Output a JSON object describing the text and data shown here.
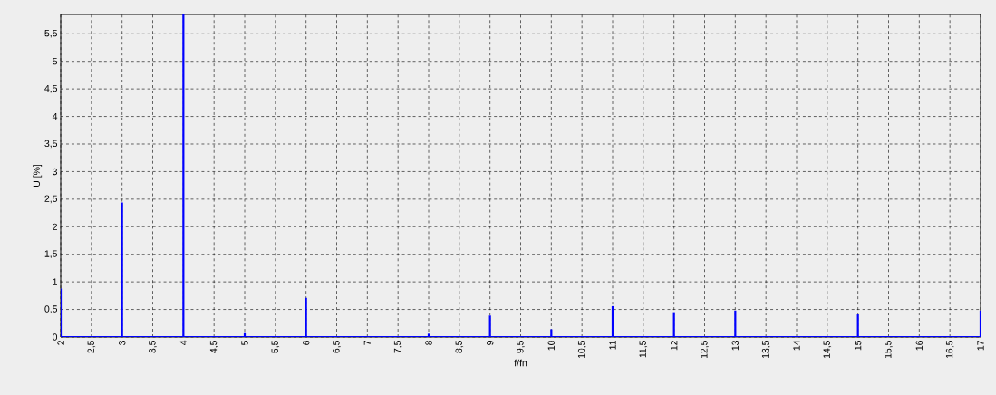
{
  "chart_data": {
    "type": "bar",
    "xlabel": "f/fn",
    "ylabel": "U [%]",
    "x": [
      2,
      3,
      4,
      5,
      6,
      8,
      9,
      10,
      11,
      12,
      13,
      15,
      17
    ],
    "values": [
      0.88,
      2.44,
      5.85,
      0.07,
      0.71,
      0.06,
      0.39,
      0.14,
      0.56,
      0.45,
      0.48,
      0.41,
      0.48
    ],
    "color": "#0000ff",
    "xlim": [
      2,
      17
    ],
    "ylim": [
      0,
      5.85
    ],
    "xticks": [
      2,
      {
        "value": 2.5,
        "label": "2,5"
      },
      3,
      {
        "value": 3.5,
        "label": "3,5"
      },
      4,
      {
        "value": 4.5,
        "label": "4,5"
      },
      5,
      {
        "value": 5.5,
        "label": "5,5"
      },
      6,
      {
        "value": 6.5,
        "label": "6,5"
      },
      7,
      {
        "value": 7.5,
        "label": "7,5"
      },
      8,
      {
        "value": 8.5,
        "label": "8,5"
      },
      9,
      {
        "value": 9.5,
        "label": "9,5"
      },
      10,
      {
        "value": 10.5,
        "label": "10,5"
      },
      11,
      {
        "value": 11.5,
        "label": "11,5"
      },
      12,
      {
        "value": 12.5,
        "label": "12,5"
      },
      13,
      {
        "value": 13.5,
        "label": "13,5"
      },
      14,
      {
        "value": 14.5,
        "label": "14,5"
      },
      15,
      {
        "value": 15.5,
        "label": "15,5"
      },
      16,
      {
        "value": 16.5,
        "label": "16,5"
      },
      17
    ],
    "yticks": [
      0,
      {
        "value": 0.5,
        "label": "0,5"
      },
      1,
      {
        "value": 1.5,
        "label": "1,5"
      },
      2,
      {
        "value": 2.5,
        "label": "2,5"
      },
      3,
      {
        "value": 3.5,
        "label": "3,5"
      },
      4,
      {
        "value": 4.5,
        "label": "4,5"
      },
      5,
      {
        "value": 5.5,
        "label": "5,5"
      }
    ],
    "grid": true
  }
}
